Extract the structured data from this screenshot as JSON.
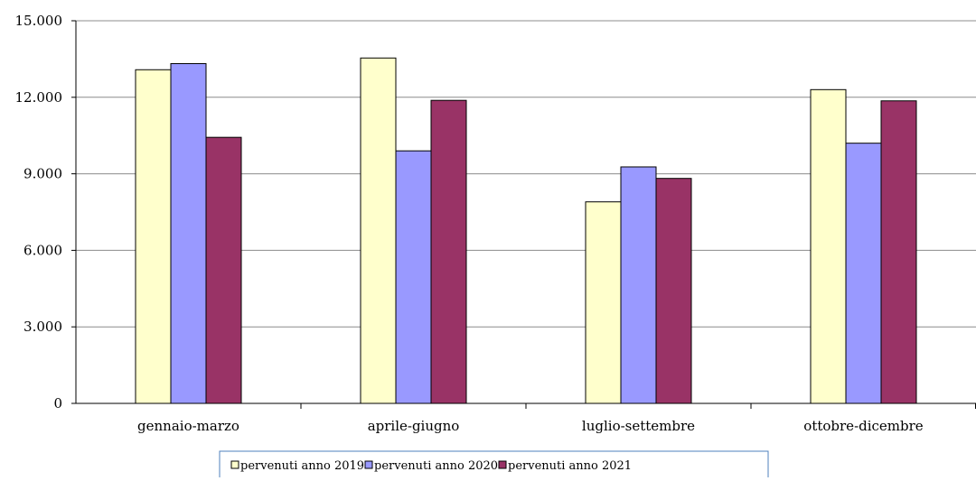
{
  "chart_data": {
    "type": "bar",
    "categories": [
      "gennaio-marzo",
      "aprile-giugno",
      "luglio-settembre",
      "ottobre-dicembre"
    ],
    "series": [
      {
        "name": "pervenuti anno 2019",
        "color": "#ffffcc",
        "values": [
          13080,
          13540,
          7900,
          12300
        ]
      },
      {
        "name": "pervenuti anno 2020",
        "color": "#9999ff",
        "values": [
          13320,
          9900,
          9270,
          10200
        ]
      },
      {
        "name": "pervenuti anno 2021",
        "color": "#993366",
        "values": [
          10430,
          11880,
          8820,
          11860
        ]
      }
    ],
    "ylim": [
      0,
      15000
    ],
    "yticks": [
      0,
      3000,
      6000,
      9000,
      12000,
      15000
    ],
    "ytick_labels": [
      "0",
      "3.000",
      "6.000",
      "9.000",
      "12.000",
      "15.000"
    ],
    "gridlines": "horizontal",
    "legend_position": "bottom-center",
    "title": "",
    "xlabel": "",
    "ylabel": ""
  }
}
